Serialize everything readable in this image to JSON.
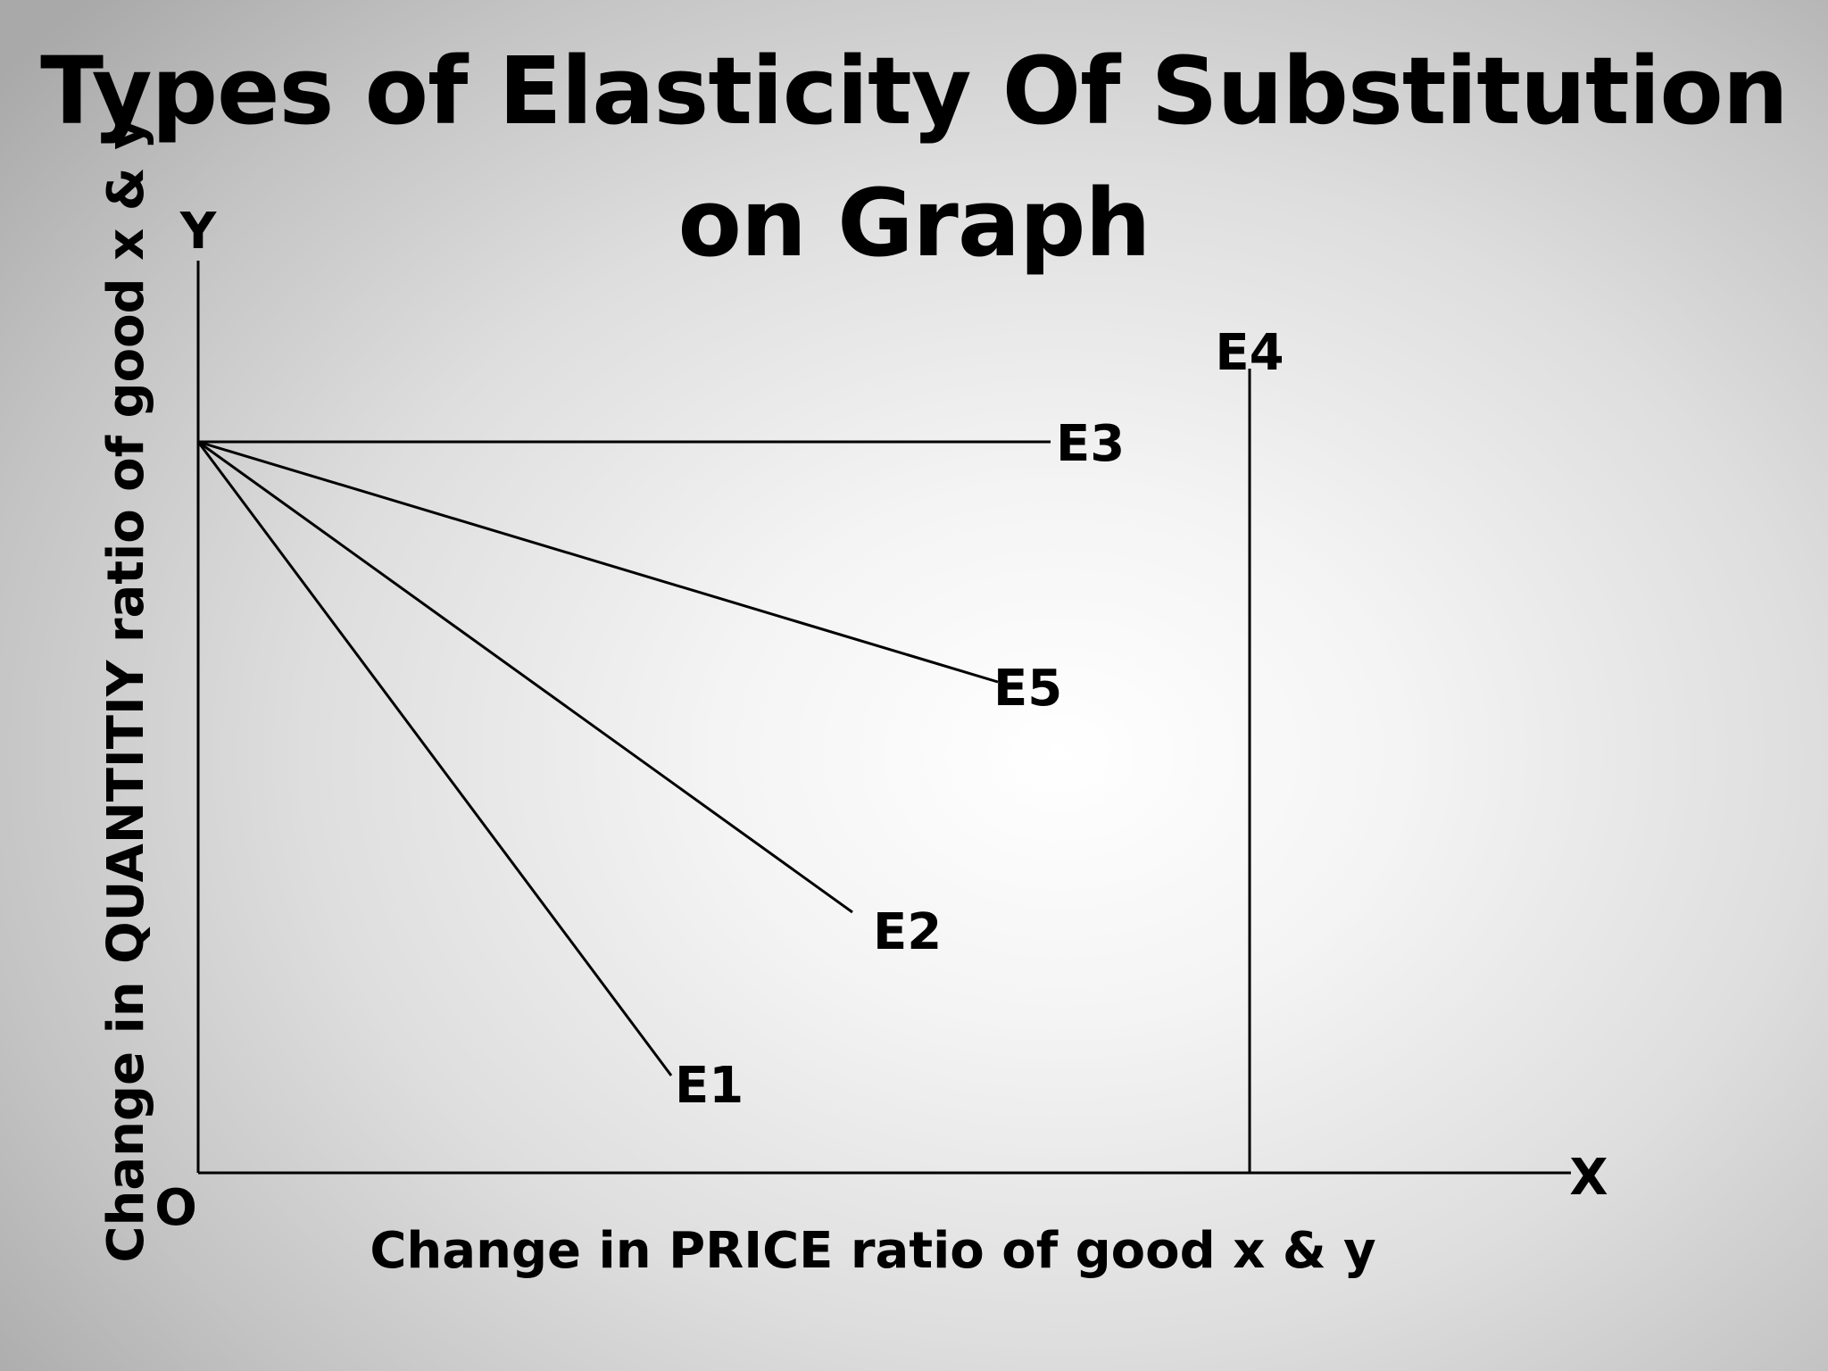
{
  "title": "Types of Elasticity Of Substitution on Graph",
  "diagram": {
    "origin_label": "O",
    "x_axis_label": "X",
    "y_axis_label": "Y",
    "x_axis_title": "Change in PRICE ratio of good x & y",
    "y_axis_title": "Change in QUANTITIY  ratio of good x & y",
    "curves": [
      {
        "label": "E1"
      },
      {
        "label": "E2"
      },
      {
        "label": "E3"
      },
      {
        "label": "E4"
      },
      {
        "label": "E5"
      }
    ],
    "line_color": "#000000"
  }
}
